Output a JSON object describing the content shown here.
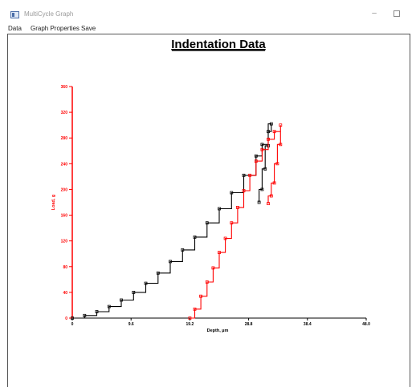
{
  "window": {
    "title": "MultiCycle Graph",
    "minimize_label": "–",
    "maximize_icon": "maximize-icon"
  },
  "menu": {
    "items": [
      "Data",
      "Graph Properties",
      "Save"
    ]
  },
  "colors": {
    "load_axis": "#ff0000",
    "series_black": "#000000",
    "series_red": "#ff0000"
  },
  "chart_data": {
    "type": "line",
    "title": "Indentation Data",
    "xlabel": "Depth, µm",
    "ylabel": "Load, g",
    "xlim": [
      0,
      48
    ],
    "ylim": [
      0,
      360
    ],
    "x_ticks": [
      "0",
      "9.6",
      "19.2",
      "28.8",
      "38.4",
      "48.0"
    ],
    "y_ticks": [
      "0",
      "40",
      "80",
      "120",
      "160",
      "200",
      "240",
      "280",
      "320",
      "360"
    ],
    "grid": false,
    "series": [
      {
        "color": "#000000",
        "points": [
          [
            0,
            0
          ],
          [
            2,
            4
          ],
          [
            4,
            10
          ],
          [
            6,
            18
          ],
          [
            8,
            28
          ],
          [
            10,
            40
          ],
          [
            12,
            54
          ],
          [
            14,
            70
          ],
          [
            16,
            88
          ],
          [
            18,
            106
          ],
          [
            20,
            126
          ],
          [
            22,
            148
          ],
          [
            24,
            170
          ],
          [
            26,
            195
          ],
          [
            28,
            222
          ],
          [
            30,
            252
          ],
          [
            31,
            270
          ],
          [
            32,
            290
          ],
          [
            32.5,
            302
          ],
          [
            32,
            268
          ],
          [
            31.5,
            232
          ],
          [
            31,
            200
          ],
          [
            30.5,
            180
          ]
        ]
      },
      {
        "color": "#ff0000",
        "points": [
          [
            19.2,
            0
          ],
          [
            20,
            14
          ],
          [
            21,
            34
          ],
          [
            22,
            56
          ],
          [
            23,
            78
          ],
          [
            24,
            102
          ],
          [
            25,
            124
          ],
          [
            26,
            148
          ],
          [
            27,
            172
          ],
          [
            28,
            198
          ],
          [
            29,
            222
          ],
          [
            30,
            244
          ],
          [
            31,
            262
          ],
          [
            32,
            278
          ],
          [
            33,
            290
          ],
          [
            34,
            300
          ],
          [
            34,
            270
          ],
          [
            33.5,
            240
          ],
          [
            33,
            210
          ],
          [
            32.5,
            190
          ],
          [
            32,
            178
          ]
        ]
      }
    ]
  }
}
